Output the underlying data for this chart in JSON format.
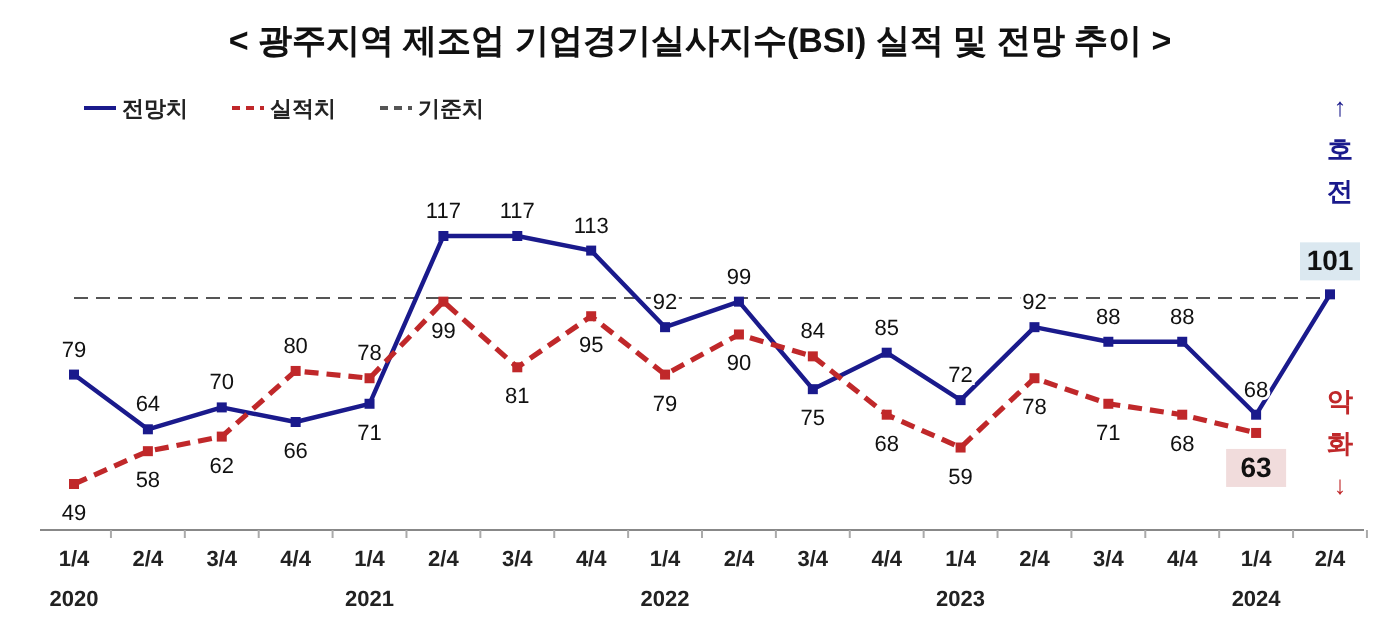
{
  "chart_data": {
    "type": "line",
    "title": "< 광주지역 제조업 기업경기실사지수(BSI) 실적 및 전망 추이 >",
    "categories": [
      "1/4\n2020",
      "2/4",
      "3/4",
      "4/4",
      "1/4\n2021",
      "2/4",
      "3/4",
      "4/4",
      "1/4\n2022",
      "2/4",
      "3/4",
      "4/4",
      "1/4\n2023",
      "2/4",
      "3/4",
      "4/4",
      "1/4\n2024",
      "2/4"
    ],
    "series": [
      {
        "name": "전망치",
        "color": "#1a1a8c",
        "line_style": "solid",
        "marker": "square",
        "values": [
          79,
          64,
          70,
          66,
          71,
          117,
          117,
          113,
          92,
          99,
          75,
          85,
          72,
          92,
          88,
          88,
          68,
          101
        ]
      },
      {
        "name": "실적치",
        "color": "#c0282a",
        "line_style": "dashed",
        "marker": "square",
        "values": [
          49,
          58,
          62,
          80,
          78,
          99,
          81,
          95,
          79,
          90,
          84,
          68,
          59,
          78,
          71,
          68,
          63,
          null
        ]
      }
    ],
    "ref_lines": [
      {
        "axis": "y",
        "value": 100,
        "label": "기준치",
        "color": "#555555",
        "line_style": "dashed"
      }
    ],
    "annotations": [
      "↑호전",
      "악화↓"
    ],
    "data_labels": true,
    "legend": "top left"
  }
}
